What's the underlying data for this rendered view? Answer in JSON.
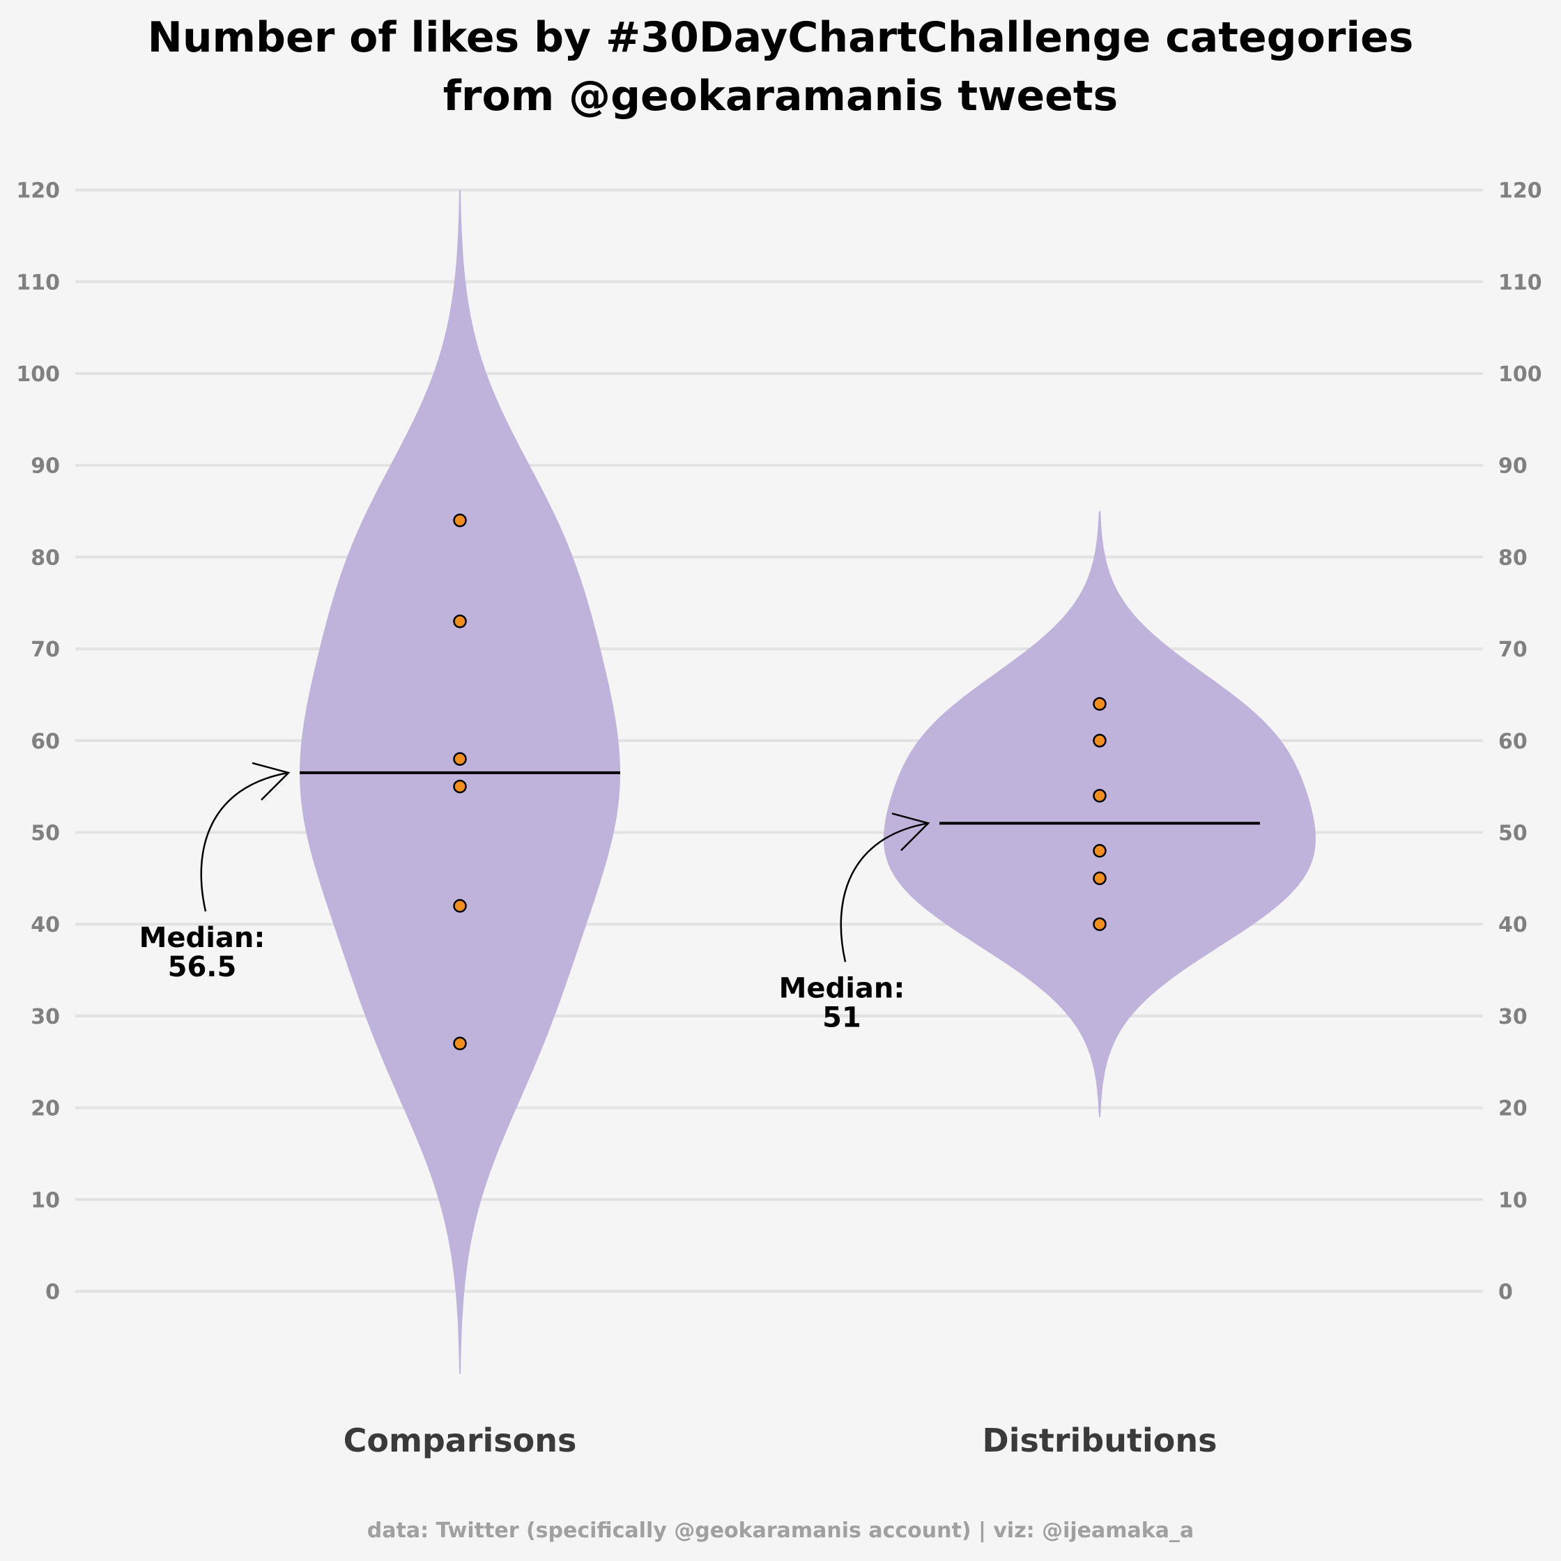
{
  "chart_data": {
    "type": "violin",
    "title": "Number of likes by #30DayChartChallenge categories",
    "subtitle": "from @geokaramanis tweets",
    "xlabel": "",
    "ylabel": "",
    "ylim": [
      -8,
      122
    ],
    "y_ticks": [
      0,
      10,
      20,
      30,
      40,
      50,
      60,
      70,
      80,
      90,
      100,
      110,
      120
    ],
    "y_tick_labels": [
      "0",
      "10",
      "20",
      "30",
      "40",
      "50",
      "60",
      "70",
      "80",
      "90",
      "100",
      "110",
      "120"
    ],
    "grid": "horizontal",
    "axes": "y-axis labels on both left and right",
    "categories": [
      "Comparisons",
      "Distributions"
    ],
    "series": [
      {
        "category": "Comparisons",
        "values": [
          84,
          73,
          58,
          55,
          42,
          27
        ],
        "median": 56.5,
        "annotation_line1": "Median:",
        "annotation_line2": "56.5"
      },
      {
        "category": "Distributions",
        "values": [
          64,
          60,
          54,
          48,
          45,
          40
        ],
        "median": 51,
        "annotation_line1": "Median:",
        "annotation_line2": "51"
      }
    ],
    "caption": "data: Twitter (specifically @geokaramanis account) |  viz: @ijeamaka_a",
    "colors": {
      "violin_fill": "#bfb3dc",
      "point_fill": "#f28e1c",
      "point_stroke": "#000000",
      "median_line": "#000000",
      "gridline": "#e2e2e2",
      "tick_text": "#808080",
      "category_text": "#3a3a3a",
      "caption_text": "#a0a0a0",
      "background": "#f5f5f5"
    }
  }
}
